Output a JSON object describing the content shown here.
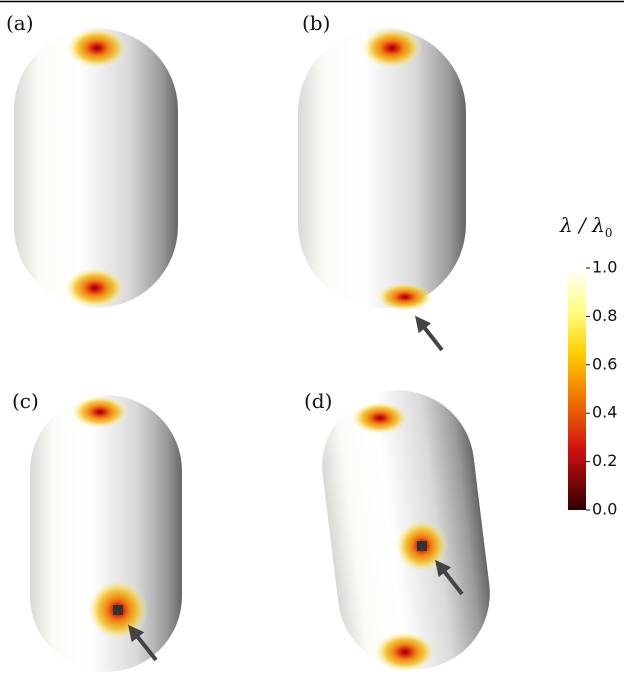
{
  "panels": [
    {
      "label": "(a)"
    },
    {
      "label": "(b)"
    },
    {
      "label": "(c)"
    },
    {
      "label": "(d)"
    }
  ],
  "colorbar": {
    "title": "λ / λ",
    "title_subscript": "0",
    "ticks": [
      {
        "value": 1,
        "label": "1.0"
      },
      {
        "value": 0.8,
        "label": "0.8"
      },
      {
        "value": 0.6,
        "label": "0.6"
      },
      {
        "value": 0.4,
        "label": "0.4"
      },
      {
        "value": 0.2,
        "label": "0.2"
      },
      {
        "value": 0,
        "label": "0.0"
      }
    ]
  }
}
